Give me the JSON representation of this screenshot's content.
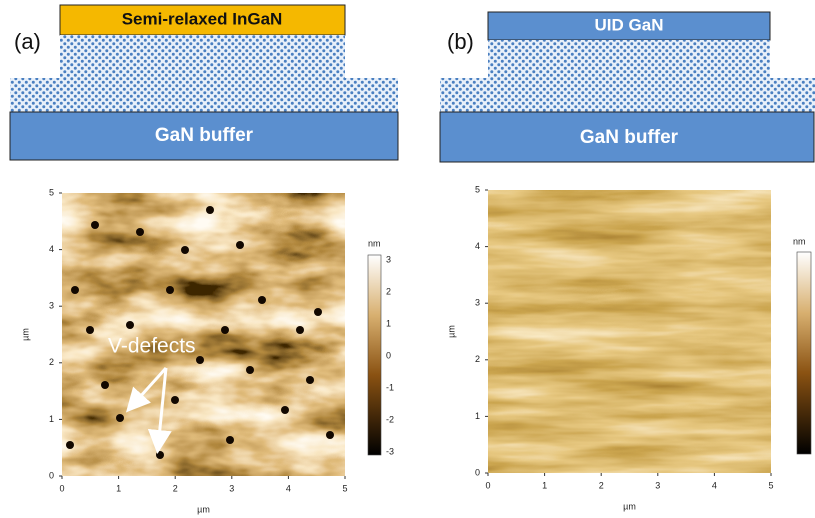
{
  "panels": [
    {
      "label": "(a)",
      "top_layer": "Semi-relaxed InGaN",
      "buffer": "GaN buffer",
      "afm": {
        "x_ticks": [
          0,
          1,
          2,
          3,
          4,
          5
        ],
        "y_ticks": [
          0,
          1,
          2,
          3,
          4,
          5
        ],
        "x_label": "µm",
        "y_label": "µm",
        "colorbar_unit": "nm",
        "colorbar_ticks": [
          3,
          2,
          1,
          0,
          -1,
          -2,
          -3
        ]
      },
      "annotation": "V-defects"
    },
    {
      "label": "(b)",
      "top_layer": "UID GaN",
      "buffer": "GaN buffer",
      "afm": {
        "x_ticks": [
          0,
          1,
          2,
          3,
          4,
          5
        ],
        "y_ticks": [
          0,
          1,
          2,
          3,
          4,
          5
        ],
        "x_label": "µm",
        "y_label": "µm",
        "colorbar_unit": "nm"
      }
    }
  ]
}
